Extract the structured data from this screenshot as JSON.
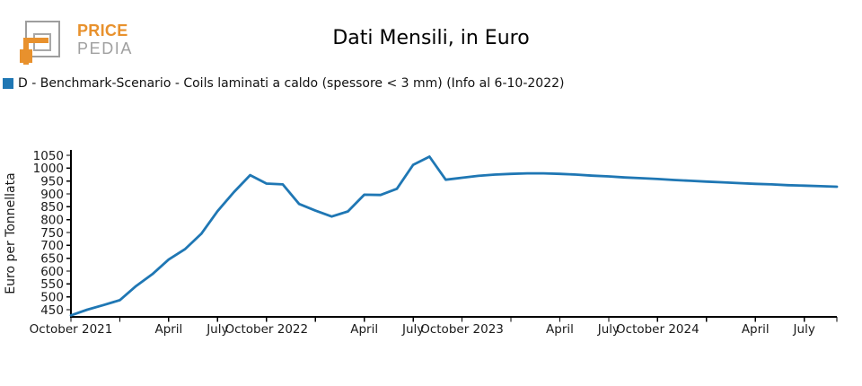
{
  "header": {
    "logo": {
      "line1": "PRICE",
      "line2": "PEDIA",
      "orange": "#e8912d",
      "gray": "#9e9e9e"
    },
    "title": "Dati Mensili, in Euro"
  },
  "legend": {
    "marker_color": "#1f77b4",
    "label": "D - Benchmark-Scenario - Coils laminati a caldo (spessore < 3 mm) (Info al 6-10-2022)"
  },
  "chart_data": {
    "type": "line",
    "title": "Dati Mensili, in Euro",
    "xlabel": "",
    "ylabel": "Euro per Tonnellata",
    "ylim": [
      422,
      1071
    ],
    "y_ticks": [
      450,
      500,
      550,
      600,
      650,
      700,
      750,
      800,
      850,
      900,
      950,
      1000,
      1050
    ],
    "x_tick_labels": [
      "October 2021",
      "April",
      "July",
      "October 2022",
      "April",
      "July",
      "October 2023",
      "April",
      "July",
      "October 2024",
      "April",
      "July"
    ],
    "x_tick_months": [
      0,
      6,
      9,
      12,
      18,
      21,
      24,
      30,
      33,
      36,
      42,
      45
    ],
    "grid": "off",
    "legend_position": "top-left",
    "x": [
      "Oct 2021",
      "Nov 2021",
      "Dec 2021",
      "Jan 2022",
      "Feb 2022",
      "Mar 2022",
      "Apr 2022",
      "May 2022",
      "Jun 2022",
      "Jul 2022",
      "Aug 2022",
      "Sep 2022",
      "Oct 2022",
      "Nov 2022",
      "Dec 2022",
      "Jan 2023",
      "Feb 2023",
      "Mar 2023",
      "Apr 2023",
      "May 2023",
      "Jun 2023",
      "Jul 2023",
      "Aug 2023",
      "Sep 2023",
      "Oct 2023",
      "Nov 2023",
      "Dec 2023",
      "Jan 2024",
      "Feb 2024",
      "Mar 2024",
      "Apr 2024",
      "May 2024",
      "Jun 2024",
      "Jul 2024",
      "Aug 2024",
      "Sep 2024",
      "Oct 2024",
      "Nov 2024",
      "Dec 2024",
      "Jan 2025",
      "Feb 2025",
      "Mar 2025",
      "Apr 2025",
      "May 2025",
      "Jun 2025",
      "Jul 2025",
      "Aug 2025",
      "Sep 2025"
    ],
    "series": [
      {
        "name": "D - Benchmark-Scenario - Coils laminati a caldo (spessore < 3 mm) (Info al 6-10-2022)",
        "color": "#1f77b4",
        "values": [
          428,
          450,
          468,
          487,
          542,
          588,
          645,
          685,
          745,
          833,
          907,
          973,
          940,
          937,
          861,
          835,
          812,
          832,
          897,
          896,
          920,
          1013,
          1045,
          955,
          963,
          970,
          975,
          978,
          980,
          980,
          978,
          975,
          971,
          968,
          964,
          961,
          958,
          954,
          951,
          948,
          945,
          942,
          939,
          937,
          934,
          932,
          930,
          928
        ]
      }
    ]
  }
}
